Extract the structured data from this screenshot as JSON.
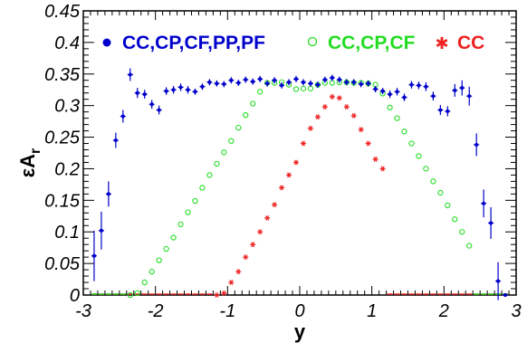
{
  "chart_data": {
    "type": "scatter",
    "xlabel": "y",
    "ylabel": "εA",
    "ylabel_sub": "r",
    "xlim": [
      -3,
      3
    ],
    "ylim": [
      0,
      0.45
    ],
    "x_ticks": [
      "-3",
      "-2",
      "-1",
      "0",
      "1",
      "2",
      "3"
    ],
    "y_ticks": [
      "0",
      "0.05",
      "0.1",
      "0.15",
      "0.2",
      "0.25",
      "0.3",
      "0.35",
      "0.4",
      "0.45"
    ],
    "grid": false,
    "legend_position": "top",
    "series": [
      {
        "name": "CC,CP,CF,PP,PF",
        "color": "#0000cc",
        "marker": "filled-circle",
        "x": [
          -2.85,
          -2.75,
          -2.65,
          -2.55,
          -2.45,
          -2.35,
          -2.25,
          -2.15,
          -2.05,
          -1.95,
          -1.85,
          -1.75,
          -1.65,
          -1.55,
          -1.45,
          -1.35,
          -1.25,
          -1.15,
          -1.05,
          -0.95,
          -0.85,
          -0.75,
          -0.65,
          -0.55,
          -0.45,
          -0.35,
          -0.25,
          -0.15,
          -0.05,
          0.05,
          0.15,
          0.25,
          0.35,
          0.45,
          0.55,
          0.65,
          0.75,
          0.85,
          0.95,
          1.05,
          1.15,
          1.25,
          1.35,
          1.45,
          1.55,
          1.65,
          1.75,
          1.85,
          1.95,
          2.05,
          2.15,
          2.25,
          2.35,
          2.45,
          2.55,
          2.65,
          2.75,
          2.85
        ],
        "y": [
          0.062,
          0.102,
          0.16,
          0.245,
          0.283,
          0.349,
          0.32,
          0.318,
          0.302,
          0.293,
          0.323,
          0.325,
          0.329,
          0.325,
          0.322,
          0.33,
          0.337,
          0.335,
          0.334,
          0.34,
          0.336,
          0.341,
          0.338,
          0.342,
          0.335,
          0.34,
          0.332,
          0.337,
          0.342,
          0.337,
          0.335,
          0.333,
          0.341,
          0.344,
          0.341,
          0.337,
          0.337,
          0.334,
          0.335,
          0.326,
          0.323,
          0.318,
          0.322,
          0.313,
          0.333,
          0.332,
          0.33,
          0.315,
          0.293,
          0.291,
          0.324,
          0.328,
          0.315,
          0.238,
          0.145,
          0.114,
          0.022,
          0.0
        ],
        "yerr": [
          0.04,
          0.03,
          0.02,
          0.012,
          0.01,
          0.01,
          0.008,
          0.007,
          0.007,
          0.007,
          0.006,
          0.006,
          0.006,
          0.006,
          0.005,
          0.005,
          0.005,
          0.005,
          0.005,
          0.005,
          0.005,
          0.005,
          0.005,
          0.005,
          0.005,
          0.005,
          0.005,
          0.005,
          0.005,
          0.005,
          0.005,
          0.005,
          0.005,
          0.005,
          0.005,
          0.005,
          0.005,
          0.005,
          0.005,
          0.005,
          0.005,
          0.006,
          0.006,
          0.006,
          0.006,
          0.006,
          0.007,
          0.007,
          0.008,
          0.008,
          0.01,
          0.012,
          0.015,
          0.018,
          0.022,
          0.025,
          0.03,
          0.0
        ]
      },
      {
        "name": "CC,CP,CF",
        "color": "#22dd22",
        "marker": "open-circle",
        "x": [
          -2.35,
          -2.25,
          -2.15,
          -2.05,
          -1.95,
          -1.85,
          -1.75,
          -1.65,
          -1.55,
          -1.45,
          -1.35,
          -1.25,
          -1.15,
          -1.05,
          -0.95,
          -0.85,
          -0.75,
          -0.65,
          -0.55,
          -0.45,
          -0.35,
          -0.25,
          -0.15,
          -0.05,
          0.05,
          0.15,
          0.25,
          0.35,
          0.45,
          0.55,
          0.65,
          0.75,
          0.85,
          0.95,
          1.05,
          1.15,
          1.25,
          1.35,
          1.45,
          1.55,
          1.65,
          1.75,
          1.85,
          1.95,
          2.05,
          2.15,
          2.25,
          2.35
        ],
        "y": [
          0.0,
          0.003,
          0.02,
          0.037,
          0.055,
          0.073,
          0.091,
          0.112,
          0.131,
          0.149,
          0.17,
          0.19,
          0.208,
          0.226,
          0.244,
          0.265,
          0.285,
          0.303,
          0.322,
          0.336,
          0.336,
          0.337,
          0.333,
          0.326,
          0.327,
          0.327,
          0.333,
          0.336,
          0.336,
          0.337,
          0.337,
          0.336,
          0.336,
          0.335,
          0.333,
          0.319,
          0.297,
          0.28,
          0.259,
          0.24,
          0.22,
          0.2,
          0.18,
          0.162,
          0.142,
          0.12,
          0.1,
          0.078
        ]
      },
      {
        "name": "CC",
        "color": "#ee2222",
        "marker": "star",
        "x": [
          -1.15,
          -1.05,
          -0.95,
          -0.85,
          -0.75,
          -0.65,
          -0.55,
          -0.45,
          -0.35,
          -0.25,
          -0.15,
          -0.05,
          0.05,
          0.15,
          0.25,
          0.35,
          0.45,
          0.55,
          0.65,
          0.75,
          0.85,
          0.95,
          1.05,
          1.15
        ],
        "y": [
          0.0,
          0.003,
          0.02,
          0.037,
          0.06,
          0.08,
          0.1,
          0.122,
          0.143,
          0.17,
          0.19,
          0.21,
          0.24,
          0.264,
          0.282,
          0.298,
          0.314,
          0.312,
          0.298,
          0.284,
          0.262,
          0.24,
          0.215,
          0.2
        ]
      }
    ],
    "baseline_series_extra": {
      "CC_left_zero_x": [
        -2.85,
        -2.75,
        -2.65,
        -2.55,
        -2.45,
        -2.35,
        -2.25,
        -2.15,
        -2.05,
        -1.95,
        -1.85,
        -1.75,
        -1.65,
        -1.55,
        -1.45,
        -1.35,
        -1.25
      ],
      "CC_right_zero_x": [
        1.25,
        1.35,
        1.45,
        1.55,
        1.65,
        1.75,
        1.85,
        1.95,
        2.05,
        2.15,
        2.25,
        2.35,
        2.45,
        2.55,
        2.65,
        2.75,
        2.85
      ],
      "CCCPCF_left_zero_x": [
        -2.85,
        -2.75,
        -2.65,
        -2.55,
        -2.45
      ],
      "CCCPCF_right_zero_x": [
        2.45,
        2.55,
        2.65,
        2.75,
        2.85
      ]
    }
  }
}
